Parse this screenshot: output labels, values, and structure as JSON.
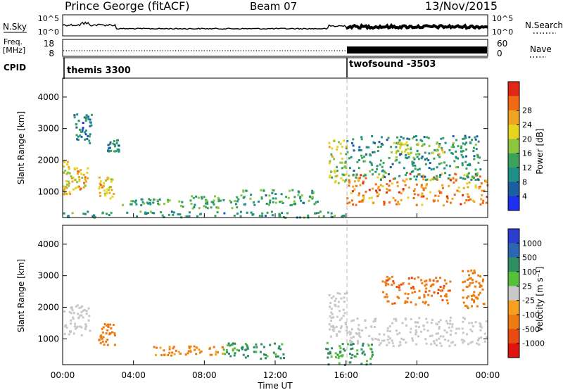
{
  "header": {
    "site": "Prince George (fitACF)",
    "beam": "Beam 07",
    "date": "13/Nov/2015"
  },
  "noise_panel": {
    "left_label": "N.Sky",
    "ticks_left": [
      "10^5",
      "10^0"
    ],
    "ticks_right": [
      "10^5",
      "10^0"
    ],
    "right_label": "N.Search"
  },
  "freq_panel": {
    "left_label_1": "Freq.",
    "left_label_2": "[MHz]",
    "ticks_left": [
      "18",
      "8"
    ],
    "ticks_right": [
      "60",
      "0"
    ],
    "right_label": "Nave"
  },
  "cpid_panel": {
    "label": "CPID",
    "programs": [
      {
        "name": "themis 3300",
        "start_hour": 0
      },
      {
        "name": "twofsound -3503",
        "start_hour": 16
      }
    ]
  },
  "time_axis": {
    "label": "Time UT",
    "ticks": [
      "00:00",
      "04:00",
      "08:00",
      "12:00",
      "16:00",
      "20:00",
      "00:00"
    ],
    "range_hours": [
      0,
      24
    ]
  },
  "chart_data": [
    {
      "type": "heatmap",
      "name": "power",
      "ylabel": "Slant Range [km]",
      "ylim": [
        180,
        4600
      ],
      "yticks": [
        "1000",
        "2000",
        "3000",
        "4000"
      ],
      "colorbar_label": "Power [dB]",
      "colorbar_ticks": [
        "4",
        "8",
        "12",
        "16",
        "20",
        "24",
        "28"
      ],
      "colors": [
        "#1f2ff0",
        "#1b5fa0",
        "#1e8f86",
        "#3aa25a",
        "#8cc63e",
        "#e6d51e",
        "#f0a422",
        "#f06a16",
        "#e02814"
      ],
      "regions": [
        {
          "t": [
            0.0,
            0.4
          ],
          "r": [
            900,
            2000
          ],
          "level": 20
        },
        {
          "t": [
            0.4,
            1.4
          ],
          "r": [
            1100,
            1800
          ],
          "level": 22
        },
        {
          "t": [
            0.6,
            1.6
          ],
          "r": [
            2500,
            3500
          ],
          "level": 8
        },
        {
          "t": [
            2.0,
            2.9
          ],
          "r": [
            800,
            1500
          ],
          "level": 21
        },
        {
          "t": [
            2.5,
            3.2
          ],
          "r": [
            2300,
            2700
          ],
          "level": 10
        },
        {
          "t": [
            3.3,
            6.0
          ],
          "r": [
            600,
            800
          ],
          "level": 12
        },
        {
          "t": [
            6.5,
            10.0
          ],
          "r": [
            500,
            900
          ],
          "level": 13
        },
        {
          "t": [
            10.0,
            14.5
          ],
          "r": [
            600,
            1100
          ],
          "level": 12
        },
        {
          "t": [
            0.0,
            16.0
          ],
          "r": [
            200,
            400
          ],
          "level": 11
        },
        {
          "t": [
            15.0,
            16.0
          ],
          "r": [
            1300,
            2700
          ],
          "level": 17
        },
        {
          "t": [
            16.0,
            24.0
          ],
          "r": [
            600,
            1600
          ],
          "level": 25
        },
        {
          "t": [
            16.0,
            23.6
          ],
          "r": [
            1400,
            2800
          ],
          "level": 10
        },
        {
          "t": [
            18.5,
            21.5
          ],
          "r": [
            2200,
            2600
          ],
          "level": 18
        }
      ]
    },
    {
      "type": "heatmap",
      "name": "velocity",
      "ylabel": "Slant Range [km]",
      "ylim": [
        180,
        4600
      ],
      "yticks": [
        "1000",
        "2000",
        "3000",
        "4000"
      ],
      "colorbar_label": "Velocity [m s⁻¹]",
      "colorbar_ticks": [
        "1000",
        "500",
        "100",
        "25",
        "-25",
        "-100",
        "-500",
        "-1000"
      ],
      "colors": [
        "#2a3fcf",
        "#2a66b4",
        "#2f8e62",
        "#57c03a",
        "#c8c8c8",
        "#f5a020",
        "#ee7a12",
        "#e84a12",
        "#e0140c"
      ],
      "regions": [
        {
          "t": [
            0.0,
            1.5
          ],
          "r": [
            1100,
            2100
          ],
          "level": 0
        },
        {
          "t": [
            2.0,
            2.9
          ],
          "r": [
            800,
            1500
          ],
          "level": -150
        },
        {
          "t": [
            5.0,
            9.0
          ],
          "r": [
            500,
            800
          ],
          "level": -120
        },
        {
          "t": [
            9.0,
            12.5
          ],
          "r": [
            400,
            900
          ],
          "level": 120
        },
        {
          "t": [
            15.0,
            16.0
          ],
          "r": [
            1100,
            2600
          ],
          "level": 0
        },
        {
          "t": [
            16.0,
            24.0
          ],
          "r": [
            800,
            1700
          ],
          "level": 0
        },
        {
          "t": [
            18.0,
            22.0
          ],
          "r": [
            2100,
            3000
          ],
          "level": -400
        },
        {
          "t": [
            14.8,
            17.5
          ],
          "r": [
            200,
            900
          ],
          "level": 120
        },
        {
          "t": [
            22.5,
            23.8
          ],
          "r": [
            2000,
            3200
          ],
          "level": -300
        }
      ]
    }
  ]
}
